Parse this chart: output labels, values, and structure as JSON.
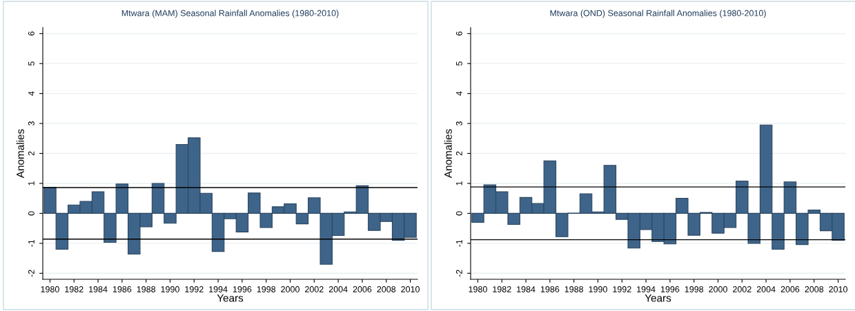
{
  "chart_data": [
    {
      "type": "bar",
      "title": "Mtwara (MAM) Seasonal Rainfall Anomalies (1980-2010)",
      "xlabel": "Years",
      "ylabel": "Anomalies",
      "color": "#3f6489",
      "x": [
        1980,
        1981,
        1982,
        1983,
        1984,
        1985,
        1986,
        1987,
        1988,
        1989,
        1990,
        1991,
        1992,
        1993,
        1994,
        1995,
        1996,
        1997,
        1998,
        1999,
        2000,
        2001,
        2002,
        2003,
        2004,
        2005,
        2006,
        2007,
        2008,
        2009,
        2010
      ],
      "values": [
        0.87,
        -1.2,
        0.28,
        0.4,
        0.72,
        -0.97,
        0.98,
        -1.36,
        -0.45,
        1.0,
        -0.33,
        2.3,
        2.52,
        0.67,
        -1.27,
        -0.18,
        -0.62,
        0.68,
        -0.47,
        0.22,
        0.32,
        -0.35,
        0.52,
        -1.7,
        -0.74,
        0.05,
        0.92,
        -0.57,
        -0.27,
        -0.9,
        -0.8
      ],
      "xlim": [
        1979.4,
        2010.6
      ],
      "xticks": [
        1980,
        1982,
        1984,
        1986,
        1988,
        1990,
        1992,
        1994,
        1996,
        1998,
        2000,
        2002,
        2004,
        2006,
        2008,
        2010
      ],
      "ylim": [
        -2.2,
        6.2
      ],
      "yticks": [
        -2,
        -1,
        0,
        1,
        2,
        3,
        4,
        5,
        6
      ],
      "grid": "y",
      "ref_lines": [
        {
          "axis": "y",
          "value": 0.86,
          "color": "#000000"
        },
        {
          "axis": "y",
          "value": -0.86,
          "color": "#000000"
        }
      ]
    },
    {
      "type": "bar",
      "title": "Mtwara (OND) Seasonal Rainfall Anomalies (1980-2010)",
      "xlabel": "Years",
      "ylabel": "Anomalies",
      "color": "#3f6489",
      "x": [
        1980,
        1981,
        1982,
        1983,
        1984,
        1985,
        1986,
        1987,
        1988,
        1989,
        1990,
        1991,
        1992,
        1993,
        1994,
        1995,
        1996,
        1997,
        1998,
        1999,
        2000,
        2001,
        2002,
        2003,
        2004,
        2005,
        2006,
        2007,
        2008,
        2009,
        2010
      ],
      "values": [
        -0.3,
        0.95,
        0.72,
        -0.37,
        0.53,
        0.33,
        1.75,
        -0.78,
        0.01,
        0.65,
        0.05,
        1.6,
        -0.2,
        -1.16,
        -0.54,
        -0.94,
        -1.02,
        0.5,
        -0.73,
        0.03,
        -0.66,
        -0.47,
        1.08,
        -1.0,
        2.95,
        -1.2,
        1.05,
        -1.04,
        0.11,
        -0.58,
        -0.9
      ],
      "xlim": [
        1979.4,
        2010.6
      ],
      "xticks": [
        1980,
        1982,
        1984,
        1986,
        1988,
        1990,
        1992,
        1994,
        1996,
        1998,
        2000,
        2002,
        2004,
        2006,
        2008,
        2010
      ],
      "ylim": [
        -2.2,
        6.2
      ],
      "yticks": [
        -2,
        -1,
        0,
        1,
        2,
        3,
        4,
        5,
        6
      ],
      "grid": "y",
      "ref_lines": [
        {
          "axis": "y",
          "value": 0.88,
          "color": "#000000"
        },
        {
          "axis": "y",
          "value": -0.88,
          "color": "#000000"
        }
      ]
    }
  ]
}
